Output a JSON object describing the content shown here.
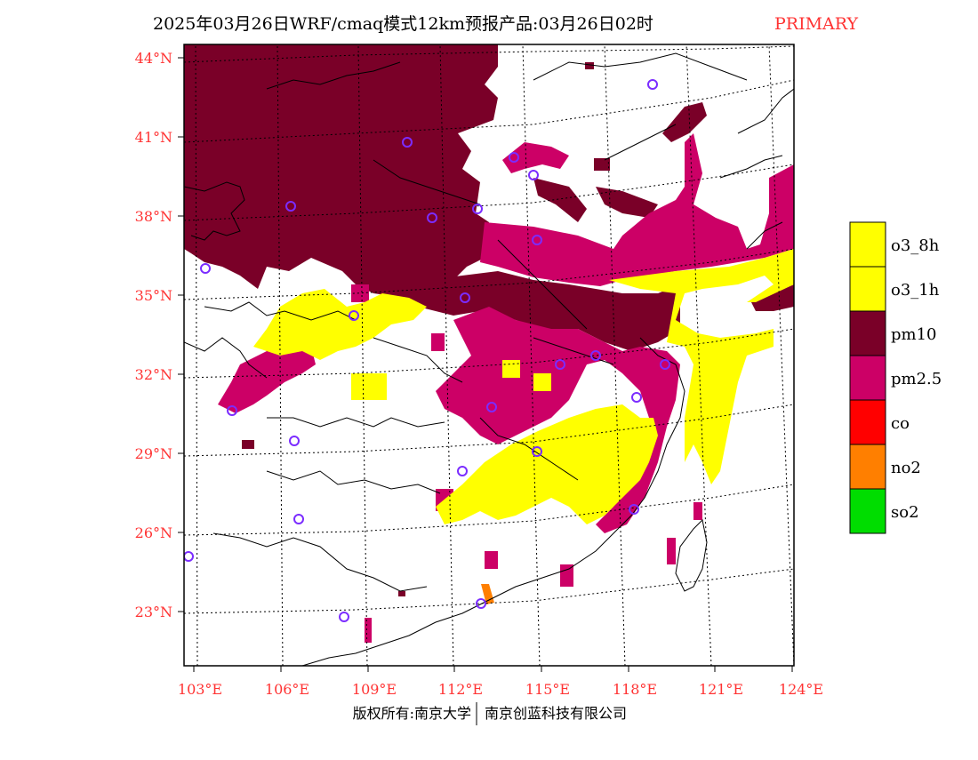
{
  "title": {
    "main": "2025年03月26日WRF/cmaq模式12km预报产品:03月26日02时",
    "tag": "PRIMARY",
    "tag_color": "#ff3333"
  },
  "axes": {
    "lat_labels": [
      "44°N",
      "41°N",
      "38°N",
      "35°N",
      "32°N",
      "29°N",
      "26°N",
      "23°N"
    ],
    "lon_labels": [
      "103°E",
      "106°E",
      "109°E",
      "112°E",
      "115°E",
      "118°E",
      "121°E",
      "124°E"
    ],
    "label_color": "#ff3333"
  },
  "legend": {
    "items": [
      {
        "label": "o3_8h",
        "color": "#ffff00"
      },
      {
        "label": "o3_1h",
        "color": "#ffff00"
      },
      {
        "label": "pm10",
        "color": "#7a0028"
      },
      {
        "label": "pm2.5",
        "color": "#cc0066"
      },
      {
        "label": "co",
        "color": "#ff0000"
      },
      {
        "label": "no2",
        "color": "#ff7f00"
      },
      {
        "label": "so2",
        "color": "#00dd00"
      }
    ]
  },
  "footer": {
    "left": "版权所有:南京大学",
    "right": "南京创蓝科技有限公司"
  },
  "colors": {
    "pm10": "#7a0028",
    "pm25": "#cc0066",
    "o3": "#ffff00",
    "no2": "#ff7f00",
    "station": "#7b2cff"
  }
}
